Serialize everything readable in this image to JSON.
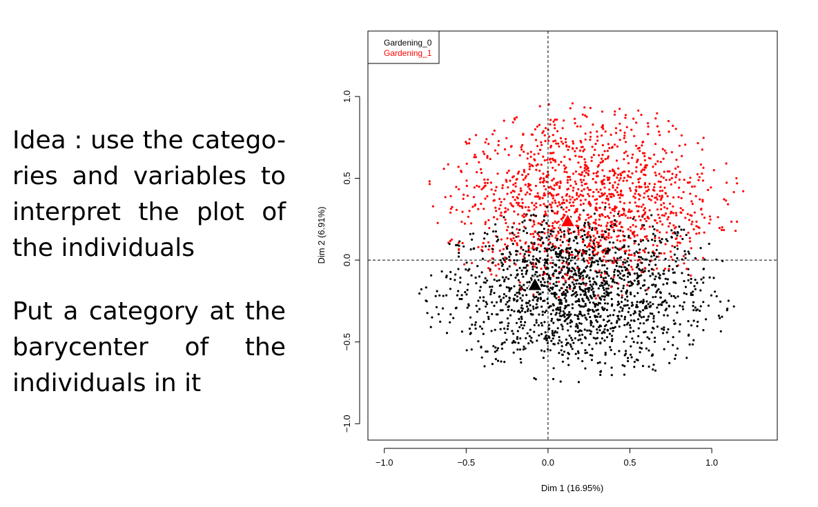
{
  "slide": {
    "paragraph1": "Idea : use the catego-ries and variables to interpret the plot of the individuals",
    "paragraph2": "Put a category at the barycenter of the individuals in it"
  },
  "chart_data": {
    "type": "scatter",
    "xlabel": "Dim 1 (16.95%)",
    "ylabel": "Dim 2 (6.91%)",
    "xlim": [
      -1.1,
      1.4
    ],
    "ylim": [
      -1.1,
      1.4
    ],
    "x_ticks": [
      -1.0,
      -0.5,
      0.0,
      0.5,
      1.0
    ],
    "x_tick_labels": [
      "−1.0",
      "−0.5",
      "0.0",
      "0.5",
      "1.0"
    ],
    "y_ticks": [
      -1.0,
      -0.5,
      0.0,
      0.5,
      1.0
    ],
    "y_tick_labels": [
      "−1.0",
      "−0.5",
      "0.0",
      "0.5",
      "1.0"
    ],
    "reference_lines": {
      "x": 0,
      "y": 0,
      "style": "dashed"
    },
    "legend": {
      "position": "top-left",
      "entries": [
        "Gardening_0",
        "Gardening_1"
      ]
    },
    "series": [
      {
        "name": "Gardening_0",
        "color": "#000000",
        "marker": "point",
        "cloud": {
          "approx_count": 3000,
          "x_range": [
            -0.8,
            1.15
          ],
          "y_range": [
            -0.75,
            0.35
          ],
          "center": [
            -0.08,
            -0.15
          ]
        }
      },
      {
        "name": "Gardening_1",
        "color": "#ff0000",
        "marker": "point",
        "cloud": {
          "approx_count": 2500,
          "x_range": [
            -0.75,
            1.2
          ],
          "y_range": [
            -0.25,
            0.97
          ],
          "center": [
            0.12,
            0.24
          ]
        }
      }
    ],
    "category_barycenters": [
      {
        "name": "Gardening_0",
        "x": -0.08,
        "y": -0.15,
        "color": "#000000",
        "marker": "triangle"
      },
      {
        "name": "Gardening_1",
        "x": 0.12,
        "y": 0.24,
        "color": "#ff0000",
        "marker": "triangle"
      }
    ]
  }
}
